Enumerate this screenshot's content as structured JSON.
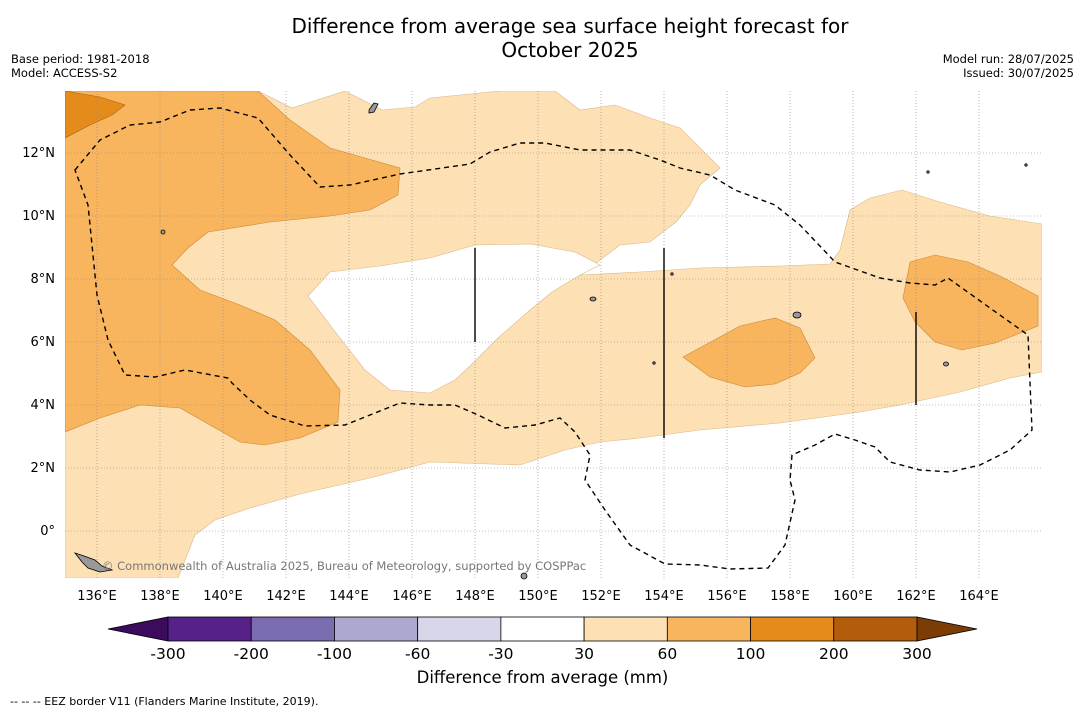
{
  "title": {
    "line1": "Difference from average sea surface height forecast for",
    "line2": "October 2025"
  },
  "meta_left": {
    "base_period": "Base period: 1981-2018",
    "model": "Model: ACCESS-S2"
  },
  "meta_right": {
    "model_run": "Model run: 28/07/2025",
    "issued": "Issued: 30/07/2025"
  },
  "map": {
    "region": "Western Pacific",
    "lat_labels": [
      "12°N",
      "10°N",
      "8°N",
      "6°N",
      "4°N",
      "2°N",
      "0°"
    ],
    "lon_labels": [
      "136°E",
      "138°E",
      "140°E",
      "142°E",
      "144°E",
      "146°E",
      "148°E",
      "150°E",
      "152°E",
      "154°E",
      "156°E",
      "158°E",
      "160°E",
      "162°E",
      "164°E"
    ],
    "credit": "© Commonwealth of Australia 2025, Bureau of Meteorology, supported by COSPPac",
    "colors": {
      "band_30_60": "#fde0b4",
      "band_60_100": "#f9b45e",
      "band_100_200": "#e48b1b",
      "land": "#999999",
      "eez": "#000000"
    }
  },
  "colorbar": {
    "title": "Difference from average (mm)",
    "ticks": [
      "-300",
      "-200",
      "-100",
      "-60",
      "-30",
      "30",
      "60",
      "100",
      "200",
      "300"
    ],
    "colors": [
      "#3c0b5e",
      "#56228a",
      "#7a6cae",
      "#ada8cf",
      "#d8d7ea",
      "#ffffff",
      "#fde0b4",
      "#f9b45e",
      "#e48b1b",
      "#b35c0c",
      "#7b3c05"
    ]
  },
  "footnote": "--  --  -- EEZ border V11 (Flanders Marine Institute, 2019)."
}
